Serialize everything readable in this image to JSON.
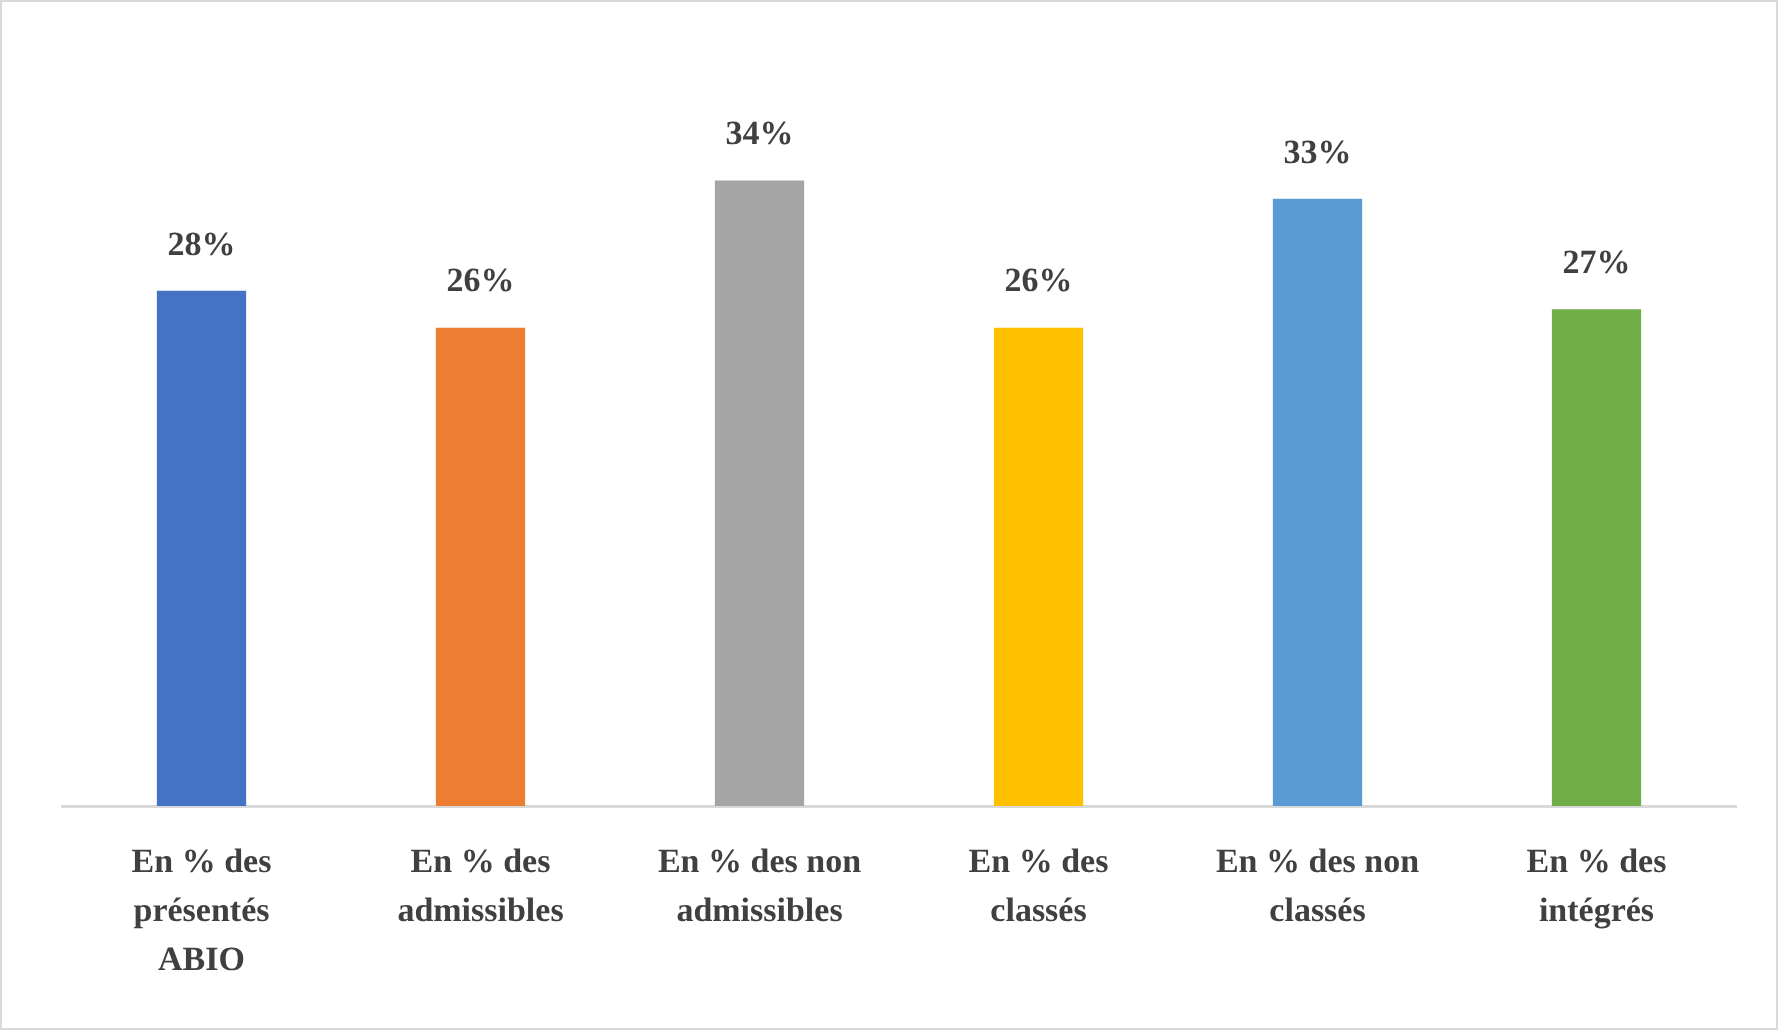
{
  "chart_data": {
    "type": "bar",
    "categories": [
      "En % des présentés ABIO",
      "En % des admissibles",
      "En % des non admissibles",
      "En % des classés",
      "En % des non classés",
      "En % des intégrés"
    ],
    "values": [
      28,
      26,
      34,
      26,
      33,
      27
    ],
    "colors": [
      "#4472c4",
      "#ed7d31",
      "#a5a5a5",
      "#ffc000",
      "#5b9bd5",
      "#70ad47"
    ],
    "value_labels": [
      "28%",
      "26%",
      "34%",
      "26%",
      "33%",
      "27%"
    ],
    "grid": false,
    "legend": false
  }
}
